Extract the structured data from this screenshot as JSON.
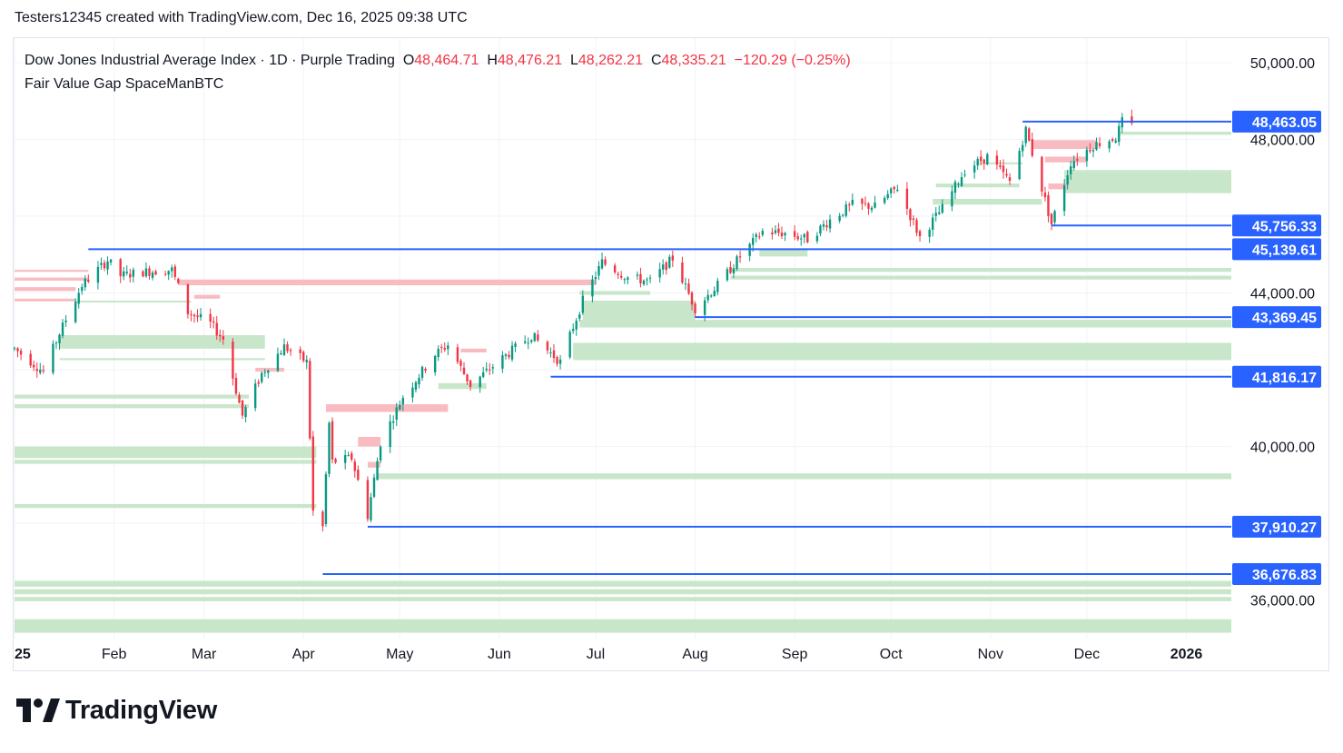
{
  "header": {
    "text": "Testers12345 created with TradingView.com, Dec 16, 2025 09:38 UTC"
  },
  "legend": {
    "title": "Dow Jones Industrial Average Index · 1D · Purple Trading",
    "open_key": "O",
    "open": "48,464.71",
    "high_key": "H",
    "high": "48,476.21",
    "low_key": "L",
    "low": "48,262.21",
    "close_key": "C",
    "close": "48,335.21",
    "change": "−120.29 (−0.25%)",
    "indicator": "Fair Value Gap SpaceManBTC"
  },
  "logo": {
    "text": "TradingView",
    "icon": "tradingview-logo-icon"
  },
  "colors": {
    "up": "#089981",
    "down": "#f23645",
    "level_line": "#2962ff",
    "bull_fvg": "#c8e6c9",
    "bear_fvg": "#f8bbc0"
  },
  "chart_data": {
    "type": "candlestick",
    "title": "Dow Jones Industrial Average Index",
    "interval": "1D",
    "x_range": [
      "2025-01-01",
      "2026-01-15"
    ],
    "ylim": [
      35400,
      50400
    ],
    "y_ticks": [
      36000,
      40000,
      44000,
      48000,
      50000
    ],
    "y_tick_labels": [
      "36,000.00",
      "40,000.00",
      "44,000.00",
      "48,000.00",
      "50,000.00"
    ],
    "x_ticks": [
      {
        "label": "25",
        "date": "2025-01-01"
      },
      {
        "label": "Feb",
        "date": "2025-02-01"
      },
      {
        "label": "Mar",
        "date": "2025-03-01"
      },
      {
        "label": "Apr",
        "date": "2025-04-01"
      },
      {
        "label": "May",
        "date": "2025-05-01"
      },
      {
        "label": "Jun",
        "date": "2025-06-01"
      },
      {
        "label": "Jul",
        "date": "2025-07-01"
      },
      {
        "label": "Aug",
        "date": "2025-08-01"
      },
      {
        "label": "Sep",
        "date": "2025-09-01"
      },
      {
        "label": "Oct",
        "date": "2025-10-01"
      },
      {
        "label": "Nov",
        "date": "2025-11-01"
      },
      {
        "label": "Dec",
        "date": "2025-12-01"
      },
      {
        "label": "2026",
        "date": "2026-01-01"
      }
    ],
    "closes": [
      {
        "date": "2025-01-01",
        "close": 42550
      },
      {
        "date": "2025-01-10",
        "close": 41950
      },
      {
        "date": "2025-01-15",
        "close": 42950
      },
      {
        "date": "2025-01-22",
        "close": 44200
      },
      {
        "date": "2025-01-30",
        "close": 44850
      },
      {
        "date": "2025-02-03",
        "close": 44450
      },
      {
        "date": "2025-02-10",
        "close": 44550
      },
      {
        "date": "2025-02-19",
        "close": 44600
      },
      {
        "date": "2025-02-24",
        "close": 43500
      },
      {
        "date": "2025-03-03",
        "close": 43200
      },
      {
        "date": "2025-03-07",
        "close": 42800
      },
      {
        "date": "2025-03-13",
        "close": 40800
      },
      {
        "date": "2025-03-19",
        "close": 41900
      },
      {
        "date": "2025-03-26",
        "close": 42600
      },
      {
        "date": "2025-04-02",
        "close": 42200
      },
      {
        "date": "2025-04-04",
        "close": 38300
      },
      {
        "date": "2025-04-07",
        "close": 37900
      },
      {
        "date": "2025-04-09",
        "close": 40600
      },
      {
        "date": "2025-04-10",
        "close": 39600
      },
      {
        "date": "2025-04-16",
        "close": 39700
      },
      {
        "date": "2025-04-21",
        "close": 38200
      },
      {
        "date": "2025-04-25",
        "close": 40100
      },
      {
        "date": "2025-05-02",
        "close": 41300
      },
      {
        "date": "2025-05-12",
        "close": 42400
      },
      {
        "date": "2025-05-16",
        "close": 42650
      },
      {
        "date": "2025-05-23",
        "close": 41600
      },
      {
        "date": "2025-06-02",
        "close": 42300
      },
      {
        "date": "2025-06-11",
        "close": 42900
      },
      {
        "date": "2025-06-20",
        "close": 42200
      },
      {
        "date": "2025-06-27",
        "close": 43800
      },
      {
        "date": "2025-07-03",
        "close": 44800
      },
      {
        "date": "2025-07-11",
        "close": 44400
      },
      {
        "date": "2025-07-18",
        "close": 44300
      },
      {
        "date": "2025-07-25",
        "close": 44900
      },
      {
        "date": "2025-08-01",
        "close": 43600
      },
      {
        "date": "2025-08-08",
        "close": 44200
      },
      {
        "date": "2025-08-15",
        "close": 44950
      },
      {
        "date": "2025-08-22",
        "close": 45600
      },
      {
        "date": "2025-08-29",
        "close": 45550
      },
      {
        "date": "2025-09-05",
        "close": 45400
      },
      {
        "date": "2025-09-12",
        "close": 45900
      },
      {
        "date": "2025-09-19",
        "close": 46300
      },
      {
        "date": "2025-09-26",
        "close": 46250
      },
      {
        "date": "2025-10-03",
        "close": 46750
      },
      {
        "date": "2025-10-10",
        "close": 45450
      },
      {
        "date": "2025-10-17",
        "close": 46200
      },
      {
        "date": "2025-10-24",
        "close": 47200
      },
      {
        "date": "2025-10-31",
        "close": 47550
      },
      {
        "date": "2025-11-07",
        "close": 46900
      },
      {
        "date": "2025-11-12",
        "close": 48250
      },
      {
        "date": "2025-11-20",
        "close": 45800
      },
      {
        "date": "2025-11-26",
        "close": 47400
      },
      {
        "date": "2025-12-03",
        "close": 47850
      },
      {
        "date": "2025-12-10",
        "close": 48050
      },
      {
        "date": "2025-12-12",
        "close": 48460
      },
      {
        "date": "2025-12-15",
        "close": 48335
      }
    ],
    "levels": [
      {
        "label": "48,463.05",
        "value": 48463.05,
        "start": "2025-11-11"
      },
      {
        "label": "45,756.33",
        "value": 45756.33,
        "start": "2025-11-20"
      },
      {
        "label": "45,139.61",
        "value": 45139.61,
        "start": "2025-01-24"
      },
      {
        "label": "43,369.45",
        "value": 43369.45,
        "start": "2025-08-01"
      },
      {
        "label": "41,816.17",
        "value": 41816.17,
        "start": "2025-06-17"
      },
      {
        "label": "37,910.27",
        "value": 37910.27,
        "start": "2025-04-21"
      },
      {
        "label": "36,676.83",
        "value": 36676.83,
        "start": "2025-04-07"
      }
    ],
    "bullish_fvgs": [
      {
        "start": "2025-11-24",
        "end": "2026-01-15",
        "top": 47150,
        "bottom": 46600
      },
      {
        "start": "2025-11-24",
        "end": "2026-01-15",
        "top": 47200,
        "bottom": 47150
      },
      {
        "start": "2025-12-11",
        "end": "2026-01-15",
        "top": 48200,
        "bottom": 48120
      },
      {
        "start": "2025-08-12",
        "end": "2026-01-15",
        "top": 44650,
        "bottom": 44550
      },
      {
        "start": "2025-08-12",
        "end": "2026-01-15",
        "top": 44450,
        "bottom": 44350
      },
      {
        "start": "2025-06-26",
        "end": "2026-01-15",
        "top": 43300,
        "bottom": 43100
      },
      {
        "start": "2025-06-24",
        "end": "2026-01-15",
        "top": 42700,
        "bottom": 42250
      },
      {
        "start": "2025-04-24",
        "end": "2026-01-15",
        "top": 39300,
        "bottom": 39150
      },
      {
        "start": "2025-01-01",
        "end": "2026-01-15",
        "top": 36500,
        "bottom": 36350
      },
      {
        "start": "2025-01-01",
        "end": "2026-01-15",
        "top": 36280,
        "bottom": 36150
      },
      {
        "start": "2025-01-01",
        "end": "2026-01-15",
        "top": 36080,
        "bottom": 35970
      },
      {
        "start": "2025-01-01",
        "end": "2026-01-15",
        "top": 35500,
        "bottom": 35150
      },
      {
        "start": "2025-01-15",
        "end": "2025-03-20",
        "top": 42900,
        "bottom": 42550
      },
      {
        "start": "2025-01-15",
        "end": "2025-03-20",
        "top": 42300,
        "bottom": 42250
      },
      {
        "start": "2025-01-01",
        "end": "2025-03-15",
        "top": 41350,
        "bottom": 41250
      },
      {
        "start": "2025-01-01",
        "end": "2025-03-15",
        "top": 41100,
        "bottom": 41000
      },
      {
        "start": "2025-01-01",
        "end": "2025-04-05",
        "top": 40000,
        "bottom": 39700
      },
      {
        "start": "2025-01-01",
        "end": "2025-04-05",
        "top": 39650,
        "bottom": 39550
      },
      {
        "start": "2025-01-01",
        "end": "2025-04-05",
        "top": 38500,
        "bottom": 38400
      },
      {
        "start": "2025-01-20",
        "end": "2025-02-25",
        "top": 43800,
        "bottom": 43750
      },
      {
        "start": "2025-06-27",
        "end": "2025-08-01",
        "top": 43800,
        "bottom": 43150
      },
      {
        "start": "2025-06-26",
        "end": "2025-07-18",
        "top": 44050,
        "bottom": 43950
      },
      {
        "start": "2025-05-13",
        "end": "2025-05-28",
        "top": 41650,
        "bottom": 41500
      },
      {
        "start": "2025-08-21",
        "end": "2025-09-05",
        "top": 45150,
        "bottom": 44950
      },
      {
        "start": "2025-10-14",
        "end": "2025-11-17",
        "top": 46450,
        "bottom": 46300
      },
      {
        "start": "2025-10-15",
        "end": "2025-11-10",
        "top": 46850,
        "bottom": 46750
      },
      {
        "start": "2025-10-28",
        "end": "2025-11-11",
        "top": 47400,
        "bottom": 47350
      }
    ],
    "bearish_fvgs": [
      {
        "start": "2025-01-01",
        "end": "2025-01-24",
        "top": 44600,
        "bottom": 44550
      },
      {
        "start": "2025-01-01",
        "end": "2025-01-24",
        "top": 44400,
        "bottom": 44320
      },
      {
        "start": "2025-01-01",
        "end": "2025-01-20",
        "top": 44150,
        "bottom": 44050
      },
      {
        "start": "2025-01-01",
        "end": "2025-01-20",
        "top": 43850,
        "bottom": 43780
      },
      {
        "start": "2025-02-21",
        "end": "2025-07-01",
        "top": 44350,
        "bottom": 44200
      },
      {
        "start": "2025-02-26",
        "end": "2025-03-06",
        "top": 43950,
        "bottom": 43850
      },
      {
        "start": "2025-03-17",
        "end": "2025-03-26",
        "top": 42050,
        "bottom": 41950
      },
      {
        "start": "2025-04-08",
        "end": "2025-05-16",
        "top": 41100,
        "bottom": 40900
      },
      {
        "start": "2025-04-18",
        "end": "2025-04-25",
        "top": 40250,
        "bottom": 40000
      },
      {
        "start": "2025-04-21",
        "end": "2025-04-25",
        "top": 39600,
        "bottom": 39450
      },
      {
        "start": "2025-05-20",
        "end": "2025-05-28",
        "top": 42550,
        "bottom": 42450
      },
      {
        "start": "2025-11-14",
        "end": "2025-12-04",
        "top": 47980,
        "bottom": 47750
      },
      {
        "start": "2025-11-18",
        "end": "2025-12-01",
        "top": 47550,
        "bottom": 47400
      },
      {
        "start": "2025-11-19",
        "end": "2025-11-25",
        "top": 46850,
        "bottom": 46700
      }
    ]
  }
}
